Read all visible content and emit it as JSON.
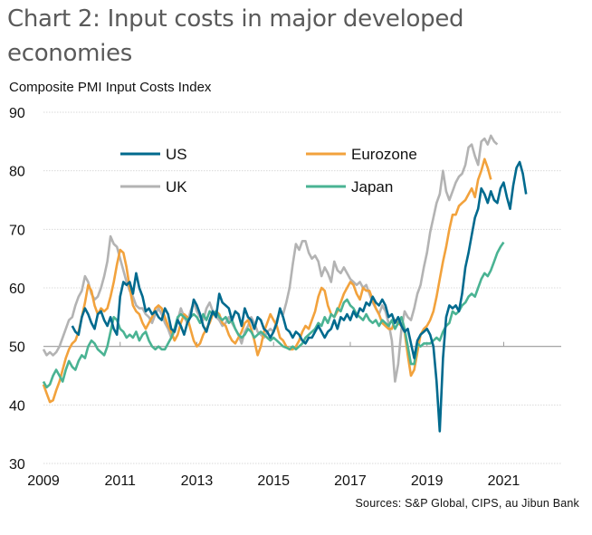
{
  "chart_data": {
    "type": "line",
    "title": "Chart 2: Input costs in major developed economies",
    "ylabel": "Composite PMI Input Costs Index",
    "xlabel": "",
    "source": "Sources: S&P Global, CIPS, au Jibun Bank",
    "ylim": [
      30,
      90
    ],
    "yticks": [
      30,
      40,
      50,
      60,
      70,
      80,
      90
    ],
    "ytick_labels": [
      "30",
      "40",
      "50",
      "60",
      "70",
      "80",
      "90"
    ],
    "x_start": "2009-01",
    "x_end": "2022-06",
    "xticks": [
      2009,
      2011,
      2013,
      2015,
      2017,
      2019,
      2021
    ],
    "xtick_labels": [
      "2009",
      "2011",
      "2013",
      "2015",
      "2017",
      "2019",
      "2021"
    ],
    "xlim": [
      2009,
      2022.5
    ],
    "reference_line": 50,
    "grid": "horizontal dotted",
    "legend": {
      "placement": "top",
      "columns": 2
    },
    "series": [
      {
        "name": "US",
        "color": "#006a8e",
        "start": "2009-10",
        "values": [
          53.5,
          52.5,
          52.0,
          55.0,
          56.5,
          55.5,
          54.0,
          53.0,
          55.5,
          56.0,
          54.5,
          53.5,
          55.0,
          53.0,
          52.0,
          58.5,
          61.0,
          60.5,
          61.0,
          59.0,
          62.5,
          60.0,
          58.5,
          56.0,
          56.5,
          55.5,
          56.0,
          55.0,
          54.5,
          56.5,
          55.5,
          53.0,
          52.5,
          54.5,
          53.5,
          52.0,
          54.0,
          55.0,
          58.0,
          57.0,
          55.5,
          53.5,
          52.5,
          54.5,
          56.0,
          55.0,
          59.0,
          57.5,
          57.0,
          56.5,
          54.5,
          56.0,
          55.5,
          53.5,
          56.5,
          55.0,
          54.5,
          53.0,
          55.0,
          54.5,
          53.0,
          52.5,
          51.5,
          52.5,
          54.0,
          56.5,
          55.0,
          53.0,
          52.5,
          51.5,
          52.5,
          52.0,
          51.0,
          50.5,
          51.5,
          51.5,
          52.5,
          53.5,
          52.5,
          51.5,
          52.5,
          53.0,
          54.5,
          53.0,
          55.0,
          54.5,
          55.5,
          54.5,
          56.0,
          55.0,
          56.5,
          56.0,
          57.5,
          57.0,
          58.5,
          57.5,
          57.0,
          58.0,
          57.0,
          55.0,
          55.5,
          54.0,
          55.0,
          53.5,
          52.5,
          53.0,
          50.5,
          48.0,
          51.0,
          52.0,
          52.5,
          53.0,
          52.0,
          50.0,
          44.0,
          35.5,
          48.0,
          55.0,
          57.0,
          56.5,
          57.0,
          56.0,
          59.0,
          63.5,
          66.0,
          69.0,
          72.0,
          73.5,
          77.0,
          76.0,
          74.5,
          76.5,
          75.0,
          74.5,
          77.0,
          78.0,
          75.5,
          73.5,
          77.5,
          80.5,
          81.5,
          79.5,
          76.0
        ]
      },
      {
        "name": "Eurozone",
        "color": "#f2a23c",
        "start": "2009-01",
        "values": [
          43.5,
          42.0,
          40.5,
          40.8,
          42.5,
          44.0,
          46.0,
          48.0,
          49.5,
          50.5,
          51.0,
          52.5,
          55.0,
          57.5,
          60.5,
          59.5,
          57.0,
          55.5,
          56.5,
          56.0,
          56.5,
          58.5,
          61.0,
          64.0,
          66.5,
          66.0,
          63.5,
          60.0,
          57.0,
          56.0,
          55.5,
          54.0,
          53.0,
          54.0,
          55.0,
          56.5,
          57.0,
          56.5,
          55.0,
          53.5,
          52.5,
          51.0,
          52.0,
          54.0,
          55.5,
          55.0,
          53.0,
          51.0,
          50.0,
          50.5,
          52.0,
          53.0,
          54.0,
          55.5,
          56.0,
          55.5,
          54.0,
          53.5,
          52.0,
          51.0,
          50.5,
          51.5,
          52.5,
          54.0,
          54.5,
          53.0,
          51.0,
          48.5,
          50.0,
          52.5,
          54.0,
          55.5,
          54.5,
          53.5,
          51.5,
          51.0,
          50.0,
          49.5,
          49.5,
          50.0,
          51.0,
          52.5,
          53.5,
          53.0,
          54.5,
          56.0,
          58.5,
          60.0,
          59.5,
          57.0,
          55.5,
          55.0,
          56.0,
          57.5,
          59.0,
          60.0,
          61.0,
          60.5,
          59.0,
          58.0,
          60.0,
          59.5,
          59.5,
          58.0,
          56.5,
          55.5,
          54.0,
          53.5,
          53.0,
          53.0,
          54.5,
          54.0,
          53.5,
          52.5,
          48.5,
          45.0,
          46.0,
          49.0,
          52.0,
          53.0,
          53.5,
          54.5,
          56.0,
          58.5,
          61.5,
          64.5,
          67.0,
          70.0,
          72.5,
          72.5,
          74.0,
          74.5,
          75.0,
          76.0,
          77.0,
          75.5,
          78.5,
          80.0,
          82.0,
          80.5,
          78.5
        ]
      },
      {
        "name": "UK",
        "color": "#b3b3b3",
        "start": "2009-01",
        "values": [
          49.5,
          48.5,
          49.0,
          48.5,
          49.0,
          50.0,
          51.5,
          53.0,
          54.5,
          55.0,
          57.0,
          58.5,
          59.5,
          62.0,
          61.0,
          59.0,
          58.0,
          58.5,
          60.0,
          62.0,
          64.5,
          68.8,
          67.5,
          67.0,
          65.0,
          63.0,
          61.0,
          59.5,
          58.5,
          57.0,
          56.5,
          56.5,
          55.5,
          55.0,
          54.0,
          55.5,
          56.5,
          55.5,
          54.0,
          53.0,
          51.5,
          52.5,
          54.5,
          56.5,
          55.0,
          54.0,
          56.0,
          57.5,
          56.0,
          55.0,
          54.5,
          56.5,
          57.5,
          56.0,
          55.0,
          54.5,
          53.5,
          54.0,
          55.0,
          54.0,
          53.0,
          52.0,
          50.5,
          52.5,
          53.5,
          55.0,
          54.0,
          52.5,
          52.0,
          51.5,
          52.5,
          53.0,
          52.5,
          54.5,
          56.0,
          55.5,
          57.5,
          60.0,
          64.0,
          67.5,
          66.5,
          68.0,
          68.0,
          66.0,
          65.0,
          65.5,
          64.5,
          62.0,
          63.5,
          62.5,
          61.0,
          64.5,
          63.0,
          62.5,
          63.5,
          62.5,
          61.5,
          61.0,
          60.5,
          61.0,
          60.0,
          60.5,
          59.0,
          57.5,
          56.5,
          55.5,
          57.0,
          56.0,
          54.0,
          51.0,
          44.0,
          47.0,
          53.0,
          56.0,
          55.0,
          54.5,
          56.5,
          59.0,
          60.5,
          63.5,
          66.0,
          69.5,
          72.0,
          74.5,
          76.0,
          80.0,
          76.5,
          75.0,
          76.5,
          78.0,
          79.0,
          79.5,
          81.0,
          84.0,
          84.5,
          82.5,
          81.0,
          85.0,
          85.5,
          84.5,
          86.0,
          85.0,
          84.5
        ]
      },
      {
        "name": "Japan",
        "color": "#4ab393",
        "start": "2009-01",
        "values": [
          44.0,
          43.0,
          43.5,
          45.0,
          46.0,
          45.0,
          44.0,
          46.0,
          47.5,
          46.5,
          46.0,
          47.5,
          48.5,
          48.0,
          50.0,
          51.0,
          50.5,
          49.5,
          49.0,
          48.5,
          50.0,
          52.5,
          55.0,
          54.5,
          53.0,
          52.5,
          51.5,
          52.0,
          51.5,
          52.5,
          51.0,
          52.0,
          52.5,
          51.0,
          50.0,
          49.5,
          50.0,
          49.5,
          49.5,
          50.5,
          51.5,
          53.0,
          55.0,
          55.5,
          55.0,
          54.5,
          55.0,
          55.5,
          55.0,
          54.0,
          55.5,
          54.5,
          56.0,
          55.5,
          56.0,
          55.0,
          54.5,
          55.0,
          54.0,
          54.5,
          53.0,
          52.0,
          51.5,
          52.0,
          53.0,
          52.5,
          51.5,
          52.0,
          52.5,
          52.0,
          51.5,
          51.0,
          51.5,
          51.0,
          50.5,
          50.0,
          49.8,
          49.5,
          50.0,
          49.5,
          50.0,
          50.5,
          51.5,
          52.0,
          52.5,
          53.0,
          54.0,
          53.5,
          55.0,
          54.0,
          55.5,
          55.0,
          56.5,
          56.0,
          57.5,
          58.0,
          57.0,
          56.5,
          55.5,
          55.0,
          54.5,
          55.5,
          54.5,
          54.0,
          54.5,
          53.5,
          54.5,
          54.0,
          53.5,
          54.5,
          53.0,
          54.0,
          55.0,
          53.0,
          50.0,
          47.0,
          47.0,
          50.5,
          50.0,
          50.5,
          50.5,
          50.5,
          51.0,
          51.5,
          51.0,
          52.5,
          53.5,
          54.0,
          56.0,
          55.5,
          56.0,
          57.0,
          57.5,
          58.5,
          59.0,
          58.5,
          60.0,
          61.5,
          62.5,
          62.0,
          63.0,
          64.5,
          66.0,
          67.0,
          67.8
        ]
      }
    ]
  }
}
